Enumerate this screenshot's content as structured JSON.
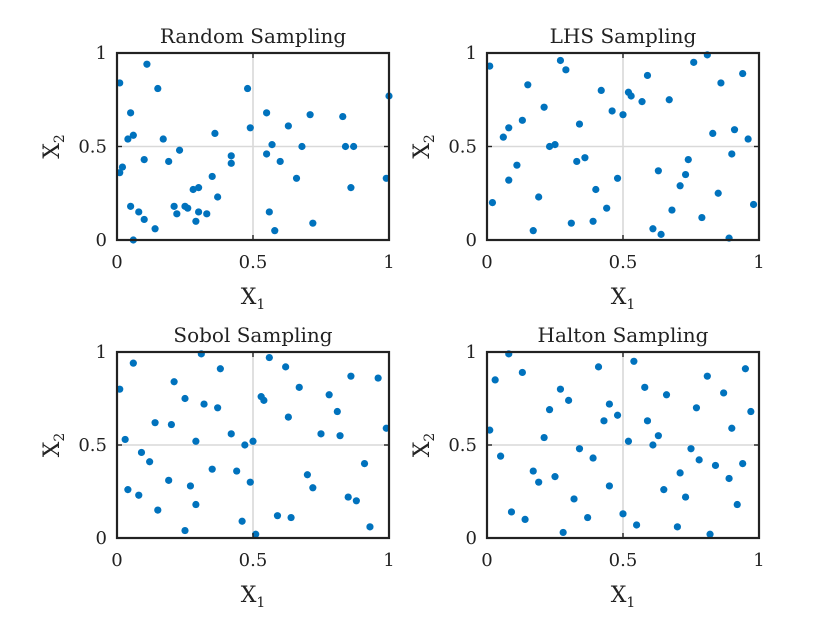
{
  "figure": {
    "colors": {
      "marker": "#0072BD",
      "axis": "#222222",
      "grid": "#d9d9d9",
      "background": "#ffffff"
    }
  },
  "chart_data": [
    {
      "type": "scatter",
      "title": "Random Sampling",
      "xlabel": {
        "base": "X",
        "sub": "1"
      },
      "ylabel": {
        "base": "X",
        "sub": "2"
      },
      "xlim": [
        0,
        1
      ],
      "ylim": [
        0,
        1
      ],
      "xticks": [
        "0",
        "0.5",
        "1"
      ],
      "yticks": [
        "0",
        "0.5",
        "1"
      ],
      "grid": true,
      "series": [
        {
          "x": [
            0.01,
            0.02,
            0.01,
            0.04,
            0.06,
            0.05,
            0.05,
            0.11,
            0.1,
            0.15,
            0.17,
            0.08,
            0.1,
            0.14,
            0.19,
            0.21,
            0.22,
            0.23,
            0.25,
            0.26,
            0.28,
            0.29,
            0.3,
            0.3,
            0.33,
            0.35,
            0.36,
            0.37,
            0.42,
            0.42,
            0.48,
            0.49,
            0.55,
            0.55,
            0.56,
            0.57,
            0.58,
            0.6,
            0.63,
            0.66,
            0.68,
            0.71,
            0.72,
            0.83,
            0.84,
            0.86,
            0.87,
            0.99,
            1.0,
            0.06
          ],
          "y": [
            0.84,
            0.39,
            0.36,
            0.54,
            0.56,
            0.68,
            0.18,
            0.94,
            0.43,
            0.81,
            0.54,
            0.15,
            0.11,
            0.06,
            0.42,
            0.18,
            0.14,
            0.48,
            0.18,
            0.17,
            0.27,
            0.1,
            0.28,
            0.15,
            0.14,
            0.34,
            0.57,
            0.23,
            0.45,
            0.41,
            0.81,
            0.6,
            0.68,
            0.46,
            0.15,
            0.51,
            0.05,
            0.42,
            0.61,
            0.33,
            0.5,
            0.67,
            0.09,
            0.66,
            0.5,
            0.28,
            0.5,
            0.33,
            0.77,
            0.0
          ]
        }
      ]
    },
    {
      "type": "scatter",
      "title": "LHS Sampling",
      "xlabel": {
        "base": "X",
        "sub": "1"
      },
      "ylabel": {
        "base": "X",
        "sub": "2"
      },
      "xlim": [
        0,
        1
      ],
      "ylim": [
        0,
        1
      ],
      "xticks": [
        "0",
        "0.5",
        "1"
      ],
      "yticks": [
        "0",
        "0.5",
        "1"
      ],
      "grid": true,
      "series": [
        {
          "x": [
            0.01,
            0.02,
            0.06,
            0.08,
            0.08,
            0.11,
            0.13,
            0.15,
            0.17,
            0.19,
            0.21,
            0.23,
            0.25,
            0.27,
            0.29,
            0.31,
            0.33,
            0.34,
            0.36,
            0.39,
            0.4,
            0.42,
            0.44,
            0.46,
            0.48,
            0.5,
            0.52,
            0.53,
            0.57,
            0.59,
            0.61,
            0.63,
            0.64,
            0.67,
            0.68,
            0.71,
            0.73,
            0.74,
            0.76,
            0.79,
            0.81,
            0.83,
            0.85,
            0.86,
            0.89,
            0.9,
            0.91,
            0.94,
            0.96,
            0.98
          ],
          "y": [
            0.93,
            0.2,
            0.55,
            0.6,
            0.32,
            0.4,
            0.64,
            0.83,
            0.05,
            0.23,
            0.71,
            0.5,
            0.51,
            0.96,
            0.91,
            0.09,
            0.42,
            0.62,
            0.44,
            0.1,
            0.27,
            0.8,
            0.17,
            0.69,
            0.33,
            0.67,
            0.79,
            0.77,
            0.74,
            0.88,
            0.06,
            0.37,
            0.03,
            0.75,
            0.16,
            0.29,
            0.35,
            0.43,
            0.95,
            0.12,
            0.99,
            0.57,
            0.25,
            0.84,
            0.01,
            0.46,
            0.59,
            0.89,
            0.54,
            0.19
          ]
        }
      ]
    },
    {
      "type": "scatter",
      "title": "Sobol Sampling",
      "xlabel": {
        "base": "X",
        "sub": "1"
      },
      "ylabel": {
        "base": "X",
        "sub": "2"
      },
      "xlim": [
        0,
        1
      ],
      "ylim": [
        0,
        1
      ],
      "xticks": [
        "0",
        "0.5",
        "1"
      ],
      "yticks": [
        "0",
        "0.5",
        "1"
      ],
      "grid": true,
      "series": [
        {
          "x": [
            0.01,
            0.03,
            0.06,
            0.04,
            0.08,
            0.12,
            0.09,
            0.14,
            0.15,
            0.19,
            0.21,
            0.2,
            0.25,
            0.25,
            0.27,
            0.29,
            0.29,
            0.31,
            0.32,
            0.35,
            0.37,
            0.38,
            0.42,
            0.44,
            0.46,
            0.47,
            0.49,
            0.5,
            0.51,
            0.53,
            0.54,
            0.56,
            0.59,
            0.62,
            0.63,
            0.64,
            0.67,
            0.7,
            0.72,
            0.75,
            0.78,
            0.81,
            0.82,
            0.85,
            0.86,
            0.88,
            0.91,
            0.93,
            0.96,
            0.99
          ],
          "y": [
            0.8,
            0.53,
            0.94,
            0.26,
            0.23,
            0.41,
            0.46,
            0.62,
            0.15,
            0.31,
            0.84,
            0.61,
            0.75,
            0.04,
            0.28,
            0.52,
            0.18,
            0.99,
            0.72,
            0.37,
            0.7,
            0.91,
            0.56,
            0.36,
            0.09,
            0.5,
            0.3,
            0.52,
            0.02,
            0.76,
            0.74,
            0.97,
            0.12,
            0.92,
            0.65,
            0.11,
            0.81,
            0.34,
            0.27,
            0.56,
            0.77,
            0.68,
            0.55,
            0.22,
            0.87,
            0.2,
            0.4,
            0.06,
            0.86,
            0.59
          ]
        }
      ]
    },
    {
      "type": "scatter",
      "title": "Halton Sampling",
      "xlabel": {
        "base": "X",
        "sub": "1"
      },
      "ylabel": {
        "base": "X",
        "sub": "2"
      },
      "xlim": [
        0,
        1
      ],
      "ylim": [
        0,
        1
      ],
      "xticks": [
        "0",
        "0.5",
        "1"
      ],
      "yticks": [
        "0",
        "0.5",
        "1"
      ],
      "grid": true,
      "series": [
        {
          "x": [
            0.01,
            0.03,
            0.05,
            0.08,
            0.09,
            0.13,
            0.14,
            0.17,
            0.19,
            0.21,
            0.23,
            0.25,
            0.27,
            0.28,
            0.3,
            0.32,
            0.34,
            0.37,
            0.39,
            0.41,
            0.43,
            0.45,
            0.48,
            0.5,
            0.52,
            0.54,
            0.55,
            0.58,
            0.59,
            0.63,
            0.65,
            0.66,
            0.7,
            0.71,
            0.73,
            0.75,
            0.77,
            0.78,
            0.81,
            0.82,
            0.84,
            0.87,
            0.89,
            0.9,
            0.92,
            0.94,
            0.95,
            0.97,
            0.45,
            0.61
          ],
          "y": [
            0.58,
            0.85,
            0.44,
            0.99,
            0.14,
            0.89,
            0.1,
            0.36,
            0.3,
            0.54,
            0.69,
            0.33,
            0.8,
            0.03,
            0.74,
            0.21,
            0.48,
            0.11,
            0.43,
            0.92,
            0.63,
            0.72,
            0.66,
            0.13,
            0.52,
            0.95,
            0.07,
            0.81,
            0.63,
            0.55,
            0.26,
            0.77,
            0.06,
            0.35,
            0.22,
            0.48,
            0.7,
            0.42,
            0.87,
            0.02,
            0.39,
            0.78,
            0.32,
            0.59,
            0.18,
            0.4,
            0.91,
            0.68,
            0.28,
            0.5
          ]
        }
      ]
    }
  ]
}
